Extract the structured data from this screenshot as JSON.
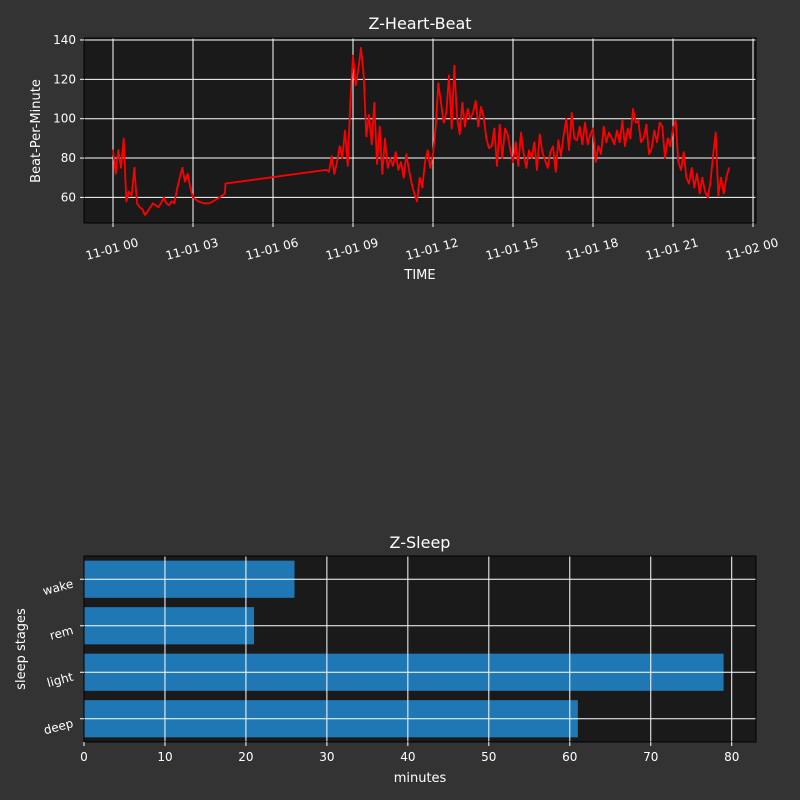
{
  "figure": {
    "background": "#333333",
    "axes_background": "#1a1a1a",
    "grid_color": "#ffffff"
  },
  "chart_data": [
    {
      "type": "line",
      "title": "Z-Heart-Beat",
      "xlabel": "TIME",
      "ylabel": "Beat-Per-Minute",
      "xlim": [
        "2024-11-01 00:00",
        "2024-11-02 00:00"
      ],
      "ylim": [
        47,
        141
      ],
      "x_ticks": [
        "11-01 00",
        "11-01 03",
        "11-01 06",
        "11-01 09",
        "11-01 12",
        "11-01 15",
        "11-01 18",
        "11-01 21",
        "11-02 00"
      ],
      "y_ticks": [
        60,
        80,
        100,
        120,
        140
      ],
      "grid": true,
      "series": [
        {
          "color": "#ff0000",
          "x": [
            "11-01 00:00",
            "11-01 00:06",
            "11-01 00:12",
            "11-01 00:18",
            "11-01 00:24",
            "11-01 00:30",
            "11-01 00:36",
            "11-01 00:42",
            "11-01 00:48",
            "11-01 00:54",
            "11-01 01:00",
            "11-01 01:06",
            "11-01 01:12",
            "11-01 01:18",
            "11-01 01:24",
            "11-01 01:30",
            "11-01 01:36",
            "11-01 01:42",
            "11-01 01:48",
            "11-01 01:54",
            "11-01 02:00",
            "11-01 02:06",
            "11-01 02:12",
            "11-01 02:18",
            "11-01 02:24",
            "11-01 02:30",
            "11-01 02:36",
            "11-01 02:42",
            "11-01 02:48",
            "11-01 02:54",
            "11-01 03:00",
            "11-01 03:12",
            "11-01 03:24",
            "11-01 03:36",
            "11-01 03:45",
            "11-01 04:00",
            "11-01 04:12",
            "11-01 04:13",
            "11-01 08:00",
            "11-01 08:06",
            "11-01 08:12",
            "11-01 08:18",
            "11-01 08:24",
            "11-01 08:30",
            "11-01 08:36",
            "11-01 08:42",
            "11-01 08:48",
            "11-01 08:54",
            "11-01 09:00",
            "11-01 09:06",
            "11-01 09:12",
            "11-01 09:18",
            "11-01 09:24",
            "11-01 09:30",
            "11-01 09:36",
            "11-01 09:42",
            "11-01 09:48",
            "11-01 09:54",
            "11-01 10:00",
            "11-01 10:06",
            "11-01 10:12",
            "11-01 10:18",
            "11-01 10:24",
            "11-01 10:30",
            "11-01 10:36",
            "11-01 10:42",
            "11-01 10:48",
            "11-01 10:54",
            "11-01 11:00",
            "11-01 11:06",
            "11-01 11:12",
            "11-01 11:18",
            "11-01 11:24",
            "11-01 11:30",
            "11-01 11:36",
            "11-01 11:42",
            "11-01 11:48",
            "11-01 11:54",
            "11-01 12:00",
            "11-01 12:06",
            "11-01 12:12",
            "11-01 12:18",
            "11-01 12:24",
            "11-01 12:30",
            "11-01 12:36",
            "11-01 12:42",
            "11-01 12:48",
            "11-01 12:54",
            "11-01 13:00",
            "11-01 13:06",
            "11-01 13:12",
            "11-01 13:18",
            "11-01 13:24",
            "11-01 13:30",
            "11-01 13:36",
            "11-01 13:42",
            "11-01 13:48",
            "11-01 13:54",
            "11-01 14:00",
            "11-01 14:06",
            "11-01 14:12",
            "11-01 14:18",
            "11-01 14:24",
            "11-01 14:30",
            "11-01 14:36",
            "11-01 14:42",
            "11-01 14:48",
            "11-01 14:54",
            "11-01 15:00",
            "11-01 15:06",
            "11-01 15:12",
            "11-01 15:18",
            "11-01 15:24",
            "11-01 15:30",
            "11-01 15:36",
            "11-01 15:42",
            "11-01 15:48",
            "11-01 15:54",
            "11-01 16:00",
            "11-01 16:06",
            "11-01 16:12",
            "11-01 16:18",
            "11-01 16:24",
            "11-01 16:30",
            "11-01 16:36",
            "11-01 16:42",
            "11-01 16:48",
            "11-01 16:54",
            "11-01 17:00",
            "11-01 17:06",
            "11-01 17:12",
            "11-01 17:18",
            "11-01 17:24",
            "11-01 17:30",
            "11-01 17:36",
            "11-01 17:42",
            "11-01 17:48",
            "11-01 17:54",
            "11-01 18:00",
            "11-01 18:06",
            "11-01 18:12",
            "11-01 18:18",
            "11-01 18:24",
            "11-01 18:30",
            "11-01 18:36",
            "11-01 18:42",
            "11-01 18:48",
            "11-01 18:54",
            "11-01 19:00",
            "11-01 19:06",
            "11-01 19:12",
            "11-01 19:18",
            "11-01 19:24",
            "11-01 19:30",
            "11-01 19:36",
            "11-01 19:42",
            "11-01 19:48",
            "11-01 19:54",
            "11-01 20:00",
            "11-01 20:06",
            "11-01 20:12",
            "11-01 20:18",
            "11-01 20:24",
            "11-01 20:30",
            "11-01 20:36",
            "11-01 20:42",
            "11-01 20:48",
            "11-01 20:54",
            "11-01 21:00",
            "11-01 21:06",
            "11-01 21:12",
            "11-01 21:18",
            "11-01 21:24",
            "11-01 21:30",
            "11-01 21:36",
            "11-01 21:42",
            "11-01 21:48",
            "11-01 21:54",
            "11-01 22:00",
            "11-01 22:06",
            "11-01 22:12",
            "11-01 22:18",
            "11-01 22:24",
            "11-01 22:30",
            "11-01 22:36",
            "11-01 22:42",
            "11-01 22:48",
            "11-01 22:54",
            "11-01 23:00",
            "11-01 23:06"
          ],
          "values": [
            84,
            72,
            84,
            75,
            90,
            58,
            63,
            61,
            75,
            57,
            55,
            54,
            51,
            53,
            55,
            57,
            56,
            55,
            57,
            60,
            57,
            56,
            58,
            57,
            64,
            70,
            75,
            68,
            72,
            65,
            60,
            58,
            57,
            57,
            58,
            60,
            62,
            67,
            74,
            73,
            81,
            72,
            78,
            86,
            80,
            94,
            76,
            108,
            132,
            117,
            125,
            136,
            122,
            91,
            102,
            87,
            108,
            77,
            96,
            72,
            90,
            75,
            80,
            76,
            83,
            74,
            78,
            70,
            82,
            74,
            67,
            62,
            58,
            70,
            65,
            78,
            84,
            75,
            82,
            96,
            118,
            108,
            98,
            103,
            122,
            95,
            127,
            101,
            92,
            108,
            96,
            105,
            100,
            103,
            109,
            96,
            106,
            101,
            90,
            85,
            86,
            95,
            76,
            97,
            80,
            95,
            92,
            84,
            78,
            88,
            76,
            93,
            82,
            75,
            84,
            80,
            88,
            74,
            92,
            83,
            79,
            75,
            83,
            86,
            73,
            89,
            81,
            92,
            100,
            84,
            103,
            90,
            89,
            96,
            87,
            98,
            87,
            92,
            95,
            78,
            86,
            82,
            96,
            88,
            93,
            90,
            87,
            94,
            88,
            99,
            86,
            95,
            90,
            105,
            98,
            99,
            88,
            90,
            97,
            82,
            85,
            94,
            88,
            98,
            96,
            80,
            90,
            86,
            95,
            99,
            78,
            74,
            83,
            70,
            67,
            75,
            65,
            72,
            62,
            70,
            63,
            60,
            67,
            81,
            93,
            61,
            70,
            62,
            70,
            75
          ]
        }
      ]
    },
    {
      "type": "bar",
      "orientation": "horizontal",
      "title": "Z-Sleep",
      "xlabel": "minutes",
      "ylabel": "sleep stages",
      "categories": [
        "deep",
        "light",
        "rem",
        "wake"
      ],
      "values": [
        61,
        79,
        21,
        26
      ],
      "color": "#1f77b4",
      "xlim": [
        0,
        83
      ],
      "x_ticks": [
        0,
        10,
        20,
        30,
        40,
        50,
        60,
        70,
        80
      ],
      "grid": true
    }
  ]
}
